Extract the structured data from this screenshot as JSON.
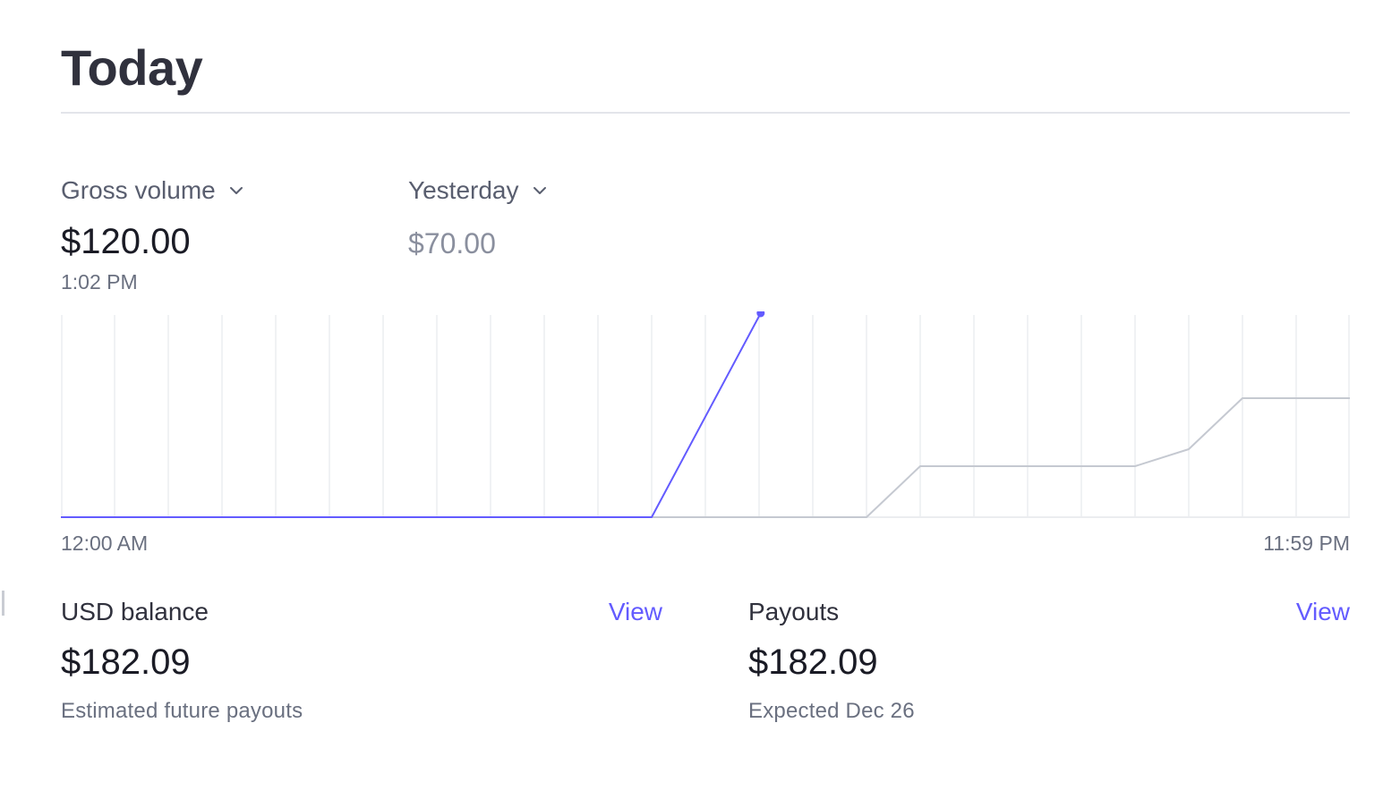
{
  "header": {
    "title": "Today"
  },
  "summary": {
    "primary_metric": "Gross volume",
    "primary_value": "$120.00",
    "primary_time": "1:02 PM",
    "compare_period": "Yesterday",
    "compare_value": "$70.00"
  },
  "chart_data": {
    "type": "line",
    "title": "",
    "xlabel": "",
    "ylabel": "",
    "x_start_label": "12:00 AM",
    "x_end_label": "11:59 PM",
    "x_hours": [
      0,
      1,
      2,
      3,
      4,
      5,
      6,
      7,
      8,
      9,
      10,
      11,
      12,
      13,
      14,
      15,
      16,
      17,
      18,
      19,
      20,
      21,
      22,
      23,
      24
    ],
    "xlim": [
      0,
      24
    ],
    "ylim": [
      0,
      120
    ],
    "grid": true,
    "legend": "none",
    "series": [
      {
        "role": "today",
        "color": "#635bff",
        "points": [
          [
            0,
            0
          ],
          [
            1,
            0
          ],
          [
            2,
            0
          ],
          [
            3,
            0
          ],
          [
            4,
            0
          ],
          [
            5,
            0
          ],
          [
            6,
            0
          ],
          [
            7,
            0
          ],
          [
            8,
            0
          ],
          [
            9,
            0
          ],
          [
            10,
            0
          ],
          [
            11,
            0
          ],
          [
            13.03,
            120
          ]
        ]
      },
      {
        "role": "yesterday",
        "color": "#c5c9d1",
        "points": [
          [
            11,
            0
          ],
          [
            12,
            0
          ],
          [
            13,
            0
          ],
          [
            14,
            0
          ],
          [
            15,
            0
          ],
          [
            16,
            30
          ],
          [
            17,
            30
          ],
          [
            18,
            30
          ],
          [
            19,
            30
          ],
          [
            20,
            30
          ],
          [
            21,
            40
          ],
          [
            22,
            70
          ],
          [
            23,
            70
          ],
          [
            24,
            70
          ]
        ]
      }
    ]
  },
  "balance_card": {
    "title": "USD balance",
    "link": "View",
    "value": "$182.09",
    "subtitle": "Estimated future payouts"
  },
  "payouts_card": {
    "title": "Payouts",
    "link": "View",
    "value": "$182.09",
    "subtitle": "Expected Dec 26"
  },
  "colors": {
    "accent": "#635bff",
    "text_primary": "#1a1b25",
    "text_secondary": "#6a7080",
    "grid": "#ebedf0",
    "compare_line": "#c5c9d1"
  },
  "icons": {
    "dropdown": "chevron-down-icon"
  }
}
